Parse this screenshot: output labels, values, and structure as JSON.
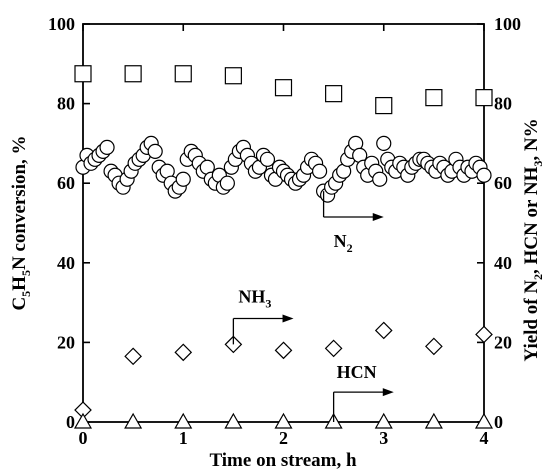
{
  "chart_data": {
    "type": "scatter",
    "x_axis": {
      "label": "Time on stream, h",
      "range": [
        0,
        4
      ],
      "ticks": [
        "0",
        "1",
        "2",
        "3",
        "4"
      ]
    },
    "y_left": {
      "label_parts": [
        "C",
        "5",
        "H",
        "5",
        "N conversion, %"
      ],
      "range": [
        0,
        100
      ],
      "ticks": [
        "0",
        "20",
        "40",
        "60",
        "80",
        "100"
      ]
    },
    "y_right": {
      "label_parts": [
        "Yield of N",
        "2",
        ", HCN or NH",
        "3",
        ", N%"
      ],
      "range": [
        0,
        100
      ],
      "ticks": [
        "0",
        "20",
        "40",
        "60",
        "80",
        "100"
      ]
    },
    "grid": false,
    "series": [
      {
        "marker": "circle",
        "axis": "left",
        "x": [
          0.0,
          0.04,
          0.08,
          0.12,
          0.16,
          0.2,
          0.24,
          0.28,
          0.32,
          0.36,
          0.4,
          0.44,
          0.48,
          0.52,
          0.56,
          0.6,
          0.64,
          0.68,
          0.72,
          0.76,
          0.8,
          0.84,
          0.88,
          0.92,
          0.96,
          1.0,
          1.04,
          1.08,
          1.12,
          1.16,
          1.2,
          1.24,
          1.28,
          1.32,
          1.36,
          1.4,
          1.44,
          1.48,
          1.52,
          1.56,
          1.6,
          1.64,
          1.68,
          1.72,
          1.76,
          1.8,
          1.84,
          1.88,
          1.92,
          1.96,
          2.0,
          2.04,
          2.08,
          2.12,
          2.16,
          2.2,
          2.24,
          2.28,
          2.32,
          2.36,
          2.4,
          2.44,
          2.48,
          2.52,
          2.56,
          2.6,
          2.64,
          2.68,
          2.72,
          2.76,
          2.8,
          2.84,
          2.88,
          2.92,
          2.96,
          3.0,
          3.04,
          3.08,
          3.12,
          3.16,
          3.2,
          3.24,
          3.28,
          3.32,
          3.36,
          3.4,
          3.44,
          3.48,
          3.52,
          3.56,
          3.6,
          3.64,
          3.68,
          3.72,
          3.76,
          3.8,
          3.84,
          3.88,
          3.92,
          3.96,
          4.0
        ],
        "y": [
          64,
          67,
          65,
          66,
          67,
          68,
          69,
          63,
          62,
          60,
          59,
          61,
          63,
          65,
          66,
          67,
          69,
          70,
          68,
          64,
          62,
          63,
          60,
          58,
          59,
          61,
          66,
          68,
          67,
          65,
          63,
          64,
          61,
          60,
          62,
          59,
          60,
          64,
          66,
          68,
          69,
          67,
          65,
          63,
          64,
          67,
          66,
          62,
          61,
          64,
          63,
          62,
          61,
          60,
          61,
          62,
          64,
          66,
          65,
          63,
          58,
          57,
          59,
          60,
          62,
          63,
          66,
          68,
          70,
          67,
          64,
          62,
          65,
          63,
          61,
          70,
          66,
          64,
          63,
          65,
          64,
          62,
          64,
          65,
          66,
          66,
          65,
          64,
          63,
          65,
          64,
          62,
          63,
          66,
          64,
          62,
          64,
          63,
          65,
          64,
          62
        ]
      },
      {
        "marker": "square",
        "axis": "right",
        "x": [
          0,
          0.5,
          1,
          1.5,
          2,
          2.5,
          3,
          3.5,
          4
        ],
        "y": [
          87.5,
          87.5,
          87.5,
          87,
          84,
          82.5,
          79.5,
          81.5,
          81.5
        ]
      },
      {
        "marker": "diamond",
        "axis": "right",
        "x": [
          0,
          0.5,
          1,
          1.5,
          2,
          2.5,
          3,
          3.5,
          4
        ],
        "y": [
          3,
          16.5,
          17.5,
          19.5,
          18,
          18.5,
          23,
          19,
          22
        ]
      },
      {
        "marker": "triangle",
        "axis": "right",
        "x": [
          0,
          0.5,
          1,
          1.5,
          2,
          2.5,
          3,
          3.5,
          4
        ],
        "y": [
          0,
          0,
          0,
          0,
          0,
          0,
          0,
          0,
          0
        ]
      }
    ],
    "annotations": [
      {
        "parts": [
          "N",
          "2"
        ],
        "arrow_x": 2.4,
        "arrow_y_top": 58,
        "arrow_y": 51.5,
        "arrow_x_end": 3.0,
        "text_x": 2.5,
        "text_y": 44
      },
      {
        "parts": [
          "NH",
          "3"
        ],
        "arrow_x": 1.5,
        "arrow_y_top": 19.5,
        "arrow_y": 26,
        "arrow_x_end": 2.1,
        "text_x": 1.55,
        "text_y": 30
      },
      {
        "parts": [
          "HCN",
          ""
        ],
        "arrow_x": 2.5,
        "arrow_y_top": 0,
        "arrow_y": 7.5,
        "arrow_x_end": 3.1,
        "text_x": 2.53,
        "text_y": 11
      }
    ]
  }
}
